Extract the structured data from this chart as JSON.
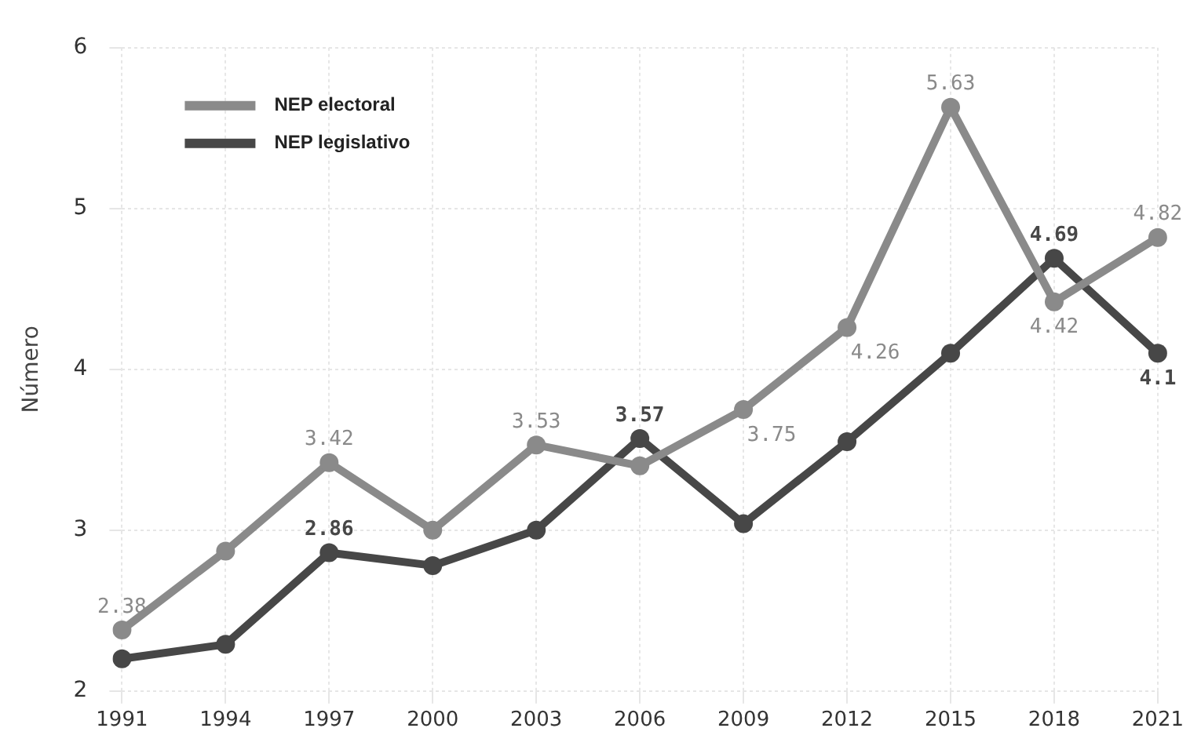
{
  "chart_data": {
    "type": "line",
    "ylabel": "Número",
    "categories": [
      "1991",
      "1994",
      "1997",
      "2000",
      "2003",
      "2006",
      "2009",
      "2012",
      "2015",
      "2018",
      "2021"
    ],
    "series": [
      {
        "name": "NEP electoral",
        "color": "#8a8a8a",
        "values": [
          2.38,
          2.87,
          3.42,
          3.0,
          3.53,
          3.4,
          3.75,
          4.26,
          5.63,
          4.42,
          4.82
        ],
        "value_labels": [
          "2.38",
          null,
          "3.42",
          null,
          "3.53",
          null,
          "3.75",
          "4.26",
          "5.63",
          "4.42",
          "4.82"
        ]
      },
      {
        "name": "NEP legislativo",
        "color": "#474747",
        "values": [
          2.2,
          2.29,
          2.86,
          2.78,
          3.0,
          3.57,
          3.04,
          3.55,
          4.1,
          4.69,
          4.1
        ],
        "value_labels": [
          null,
          null,
          "2.86",
          null,
          null,
          "3.57",
          null,
          null,
          null,
          "4.69",
          "4.1"
        ]
      }
    ],
    "ylim": [
      2,
      6
    ],
    "yticks": [
      2,
      3,
      4,
      5,
      6
    ],
    "grid": true,
    "legend": "top left",
    "marker": "circle",
    "line_style": "solid"
  }
}
